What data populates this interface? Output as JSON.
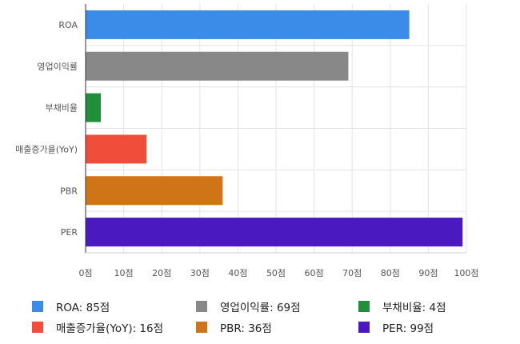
{
  "chart_data": {
    "type": "bar",
    "orientation": "horizontal",
    "categories": [
      "ROA",
      "영업이익률",
      "부채비율",
      "매출증가율(YoY)",
      "PBR",
      "PER"
    ],
    "values": [
      85,
      69,
      4,
      16,
      36,
      99
    ],
    "colors": [
      "#3b8ce8",
      "#888888",
      "#1f8f3a",
      "#f04e3a",
      "#d07418",
      "#4a1ac0"
    ],
    "xlim": [
      0,
      100
    ],
    "x_ticks": [
      "0점",
      "10점",
      "20점",
      "30점",
      "40점",
      "50점",
      "60점",
      "70점",
      "80점",
      "90점",
      "100점"
    ],
    "grid": true,
    "legend": {
      "position": "bottom",
      "entries": [
        "ROA: 85점",
        "영업이익률: 69점",
        "부채비율: 4점",
        "매출증가율(YoY): 16점",
        "PBR: 36점",
        "PER: 99점"
      ]
    }
  }
}
